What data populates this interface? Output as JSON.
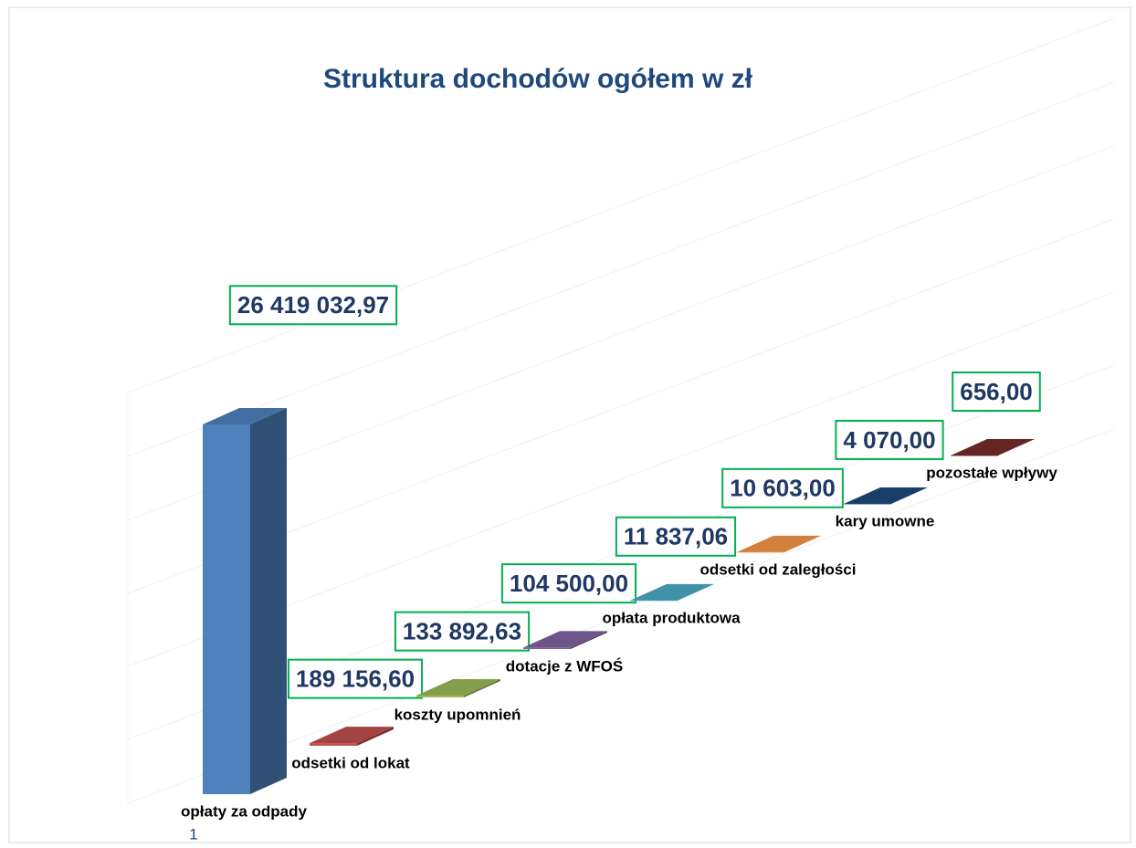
{
  "chart_data": {
    "type": "bar",
    "title": "Struktura dochodów ogółem w zł",
    "x_axis_label": "1",
    "categories": [
      "opłaty za odpady",
      "odsetki od lokat",
      "koszty upomnień",
      "dotacje z WFOŚ",
      "opłata produktowa",
      "odsetki od zaległości",
      "kary umowne",
      "pozostałe wpływy"
    ],
    "values": [
      26419032.97,
      189156.6,
      133892.63,
      104500.0,
      11837.06,
      10603.0,
      4070.0,
      656.0
    ],
    "value_labels": [
      "26 419 032,97",
      "189 156,60",
      "133 892,63",
      "104 500,00",
      "11 837,06",
      "10 603,00",
      "4 070,00",
      "656,00"
    ],
    "colors": [
      "#4f81bd",
      "#c0504d",
      "#9bbb59",
      "#8064a2",
      "#4bacc6",
      "#f79646",
      "#1f497d",
      "#772c2a"
    ]
  }
}
